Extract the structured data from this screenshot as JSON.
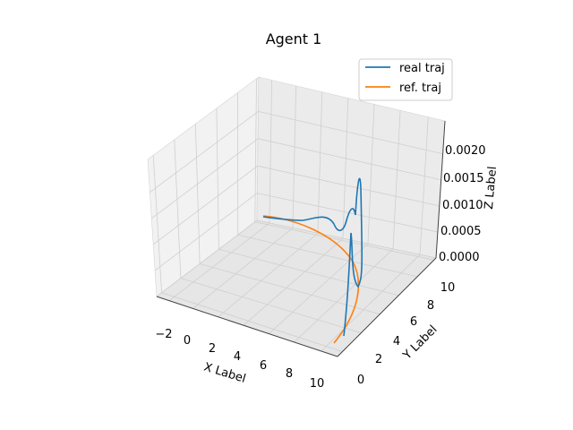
{
  "chart_data": {
    "type": "line",
    "projection": "3d",
    "title": "Agent 1",
    "xlabel": "X Label",
    "ylabel": "Y Label",
    "zlabel": "Z Label",
    "xticks": [
      "−2",
      "0",
      "2",
      "4",
      "6",
      "8",
      "10"
    ],
    "yticks": [
      "0",
      "2",
      "4",
      "6",
      "8",
      "10"
    ],
    "zticks": [
      "0.0000",
      "0.0005",
      "0.0010",
      "0.0015",
      "0.0020"
    ],
    "grid": true,
    "legend_position": "upper right",
    "series": [
      {
        "name": "real traj",
        "color": "#1f77b4"
      },
      {
        "name": "ref. traj",
        "color": "#ff7f0e"
      }
    ]
  }
}
